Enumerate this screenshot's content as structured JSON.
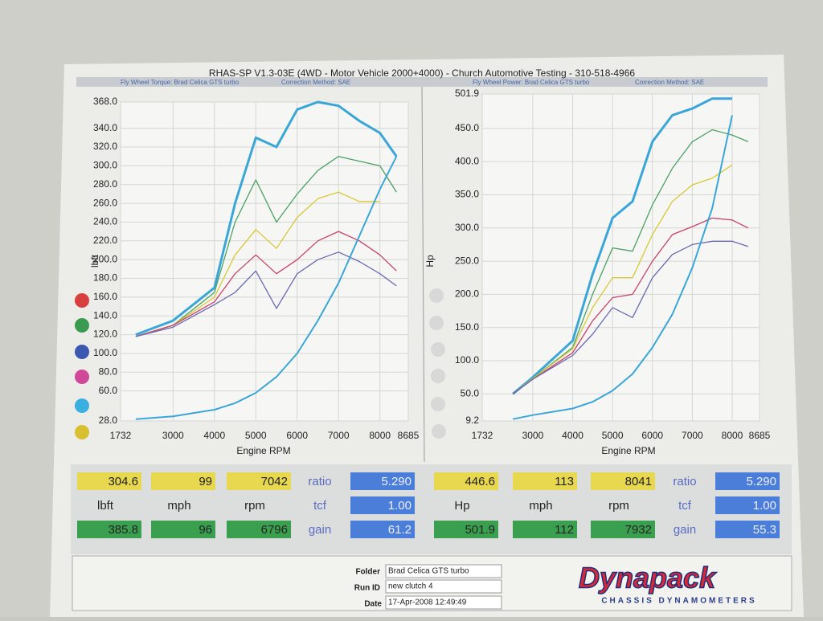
{
  "header": {
    "title": "RHAS-SP V1.3-03E  (4WD - Motor Vehicle 2000+4000) - Church Automotive Testing - 310-518-4966",
    "left_note": "Fly Wheel Torque: Brad Celica GTS turbo",
    "left_correction": "Correction Method: SAE",
    "right_note": "Fly Wheel Power: Brad Celica GTS turbo",
    "right_correction": "Correction Method: SAE"
  },
  "chart_data": [
    {
      "type": "line",
      "xlabel": "Engine RPM",
      "ylabel": "lbft",
      "grid": true,
      "x": [
        2100,
        3000,
        4000,
        4500,
        5000,
        5500,
        6000,
        6500,
        7000,
        7500,
        8000,
        8400
      ],
      "xlim": [
        1732,
        8685
      ],
      "xticks": [
        1732,
        3000,
        4000,
        5000,
        6000,
        7000,
        8000,
        8685
      ],
      "ylim": [
        28,
        368
      ],
      "yticks": [
        {
          "value": 28,
          "label": "28.0"
        },
        {
          "value": 60,
          "label": "60.0"
        },
        {
          "value": 80,
          "label": "80.0"
        },
        {
          "value": 100,
          "label": "100.0"
        },
        {
          "value": 120,
          "label": "120.0"
        },
        {
          "value": 140,
          "label": "140.0"
        },
        {
          "value": 160,
          "label": "160.0"
        },
        {
          "value": 180,
          "label": "180.0"
        },
        {
          "value": 200,
          "label": "200.0"
        },
        {
          "value": 220,
          "label": "220.0"
        },
        {
          "value": 240,
          "label": "240.0"
        },
        {
          "value": 260,
          "label": "260.0"
        },
        {
          "value": 280,
          "label": "280.0"
        },
        {
          "value": 300,
          "label": "300.0"
        },
        {
          "value": 320,
          "label": "320.0"
        },
        {
          "value": 340,
          "label": "340.0"
        },
        {
          "value": 368,
          "label": "368.0"
        }
      ],
      "series": [
        {
          "color": "#3aa6d8",
          "width": 3,
          "values": [
            120,
            135,
            170,
            260,
            330,
            320,
            360,
            368,
            364,
            348,
            335,
            310
          ]
        },
        {
          "color": "#4aa060",
          "width": 1.3,
          "values": [
            118,
            130,
            165,
            240,
            285,
            240,
            270,
            295,
            310,
            305,
            300,
            272
          ]
        },
        {
          "color": "#d8c832",
          "width": 1.3,
          "values": [
            118,
            130,
            160,
            205,
            232,
            212,
            245,
            265,
            272,
            262,
            262,
            null
          ]
        },
        {
          "color": "#c8406a",
          "width": 1.3,
          "values": [
            118,
            130,
            155,
            185,
            205,
            185,
            200,
            220,
            230,
            220,
            205,
            188
          ]
        },
        {
          "color": "#6a68b0",
          "width": 1.3,
          "values": [
            118,
            128,
            152,
            165,
            188,
            148,
            185,
            200,
            208,
            198,
            185,
            172
          ]
        },
        {
          "color": "#3aa6d8",
          "width": 2,
          "values": [
            30,
            33,
            40,
            47,
            58,
            75,
            100,
            135,
            175,
            225,
            275,
            310
          ]
        }
      ]
    },
    {
      "type": "line",
      "xlabel": "Engine RPM",
      "ylabel": "Hp",
      "grid": true,
      "x": [
        2500,
        3000,
        4000,
        4500,
        5000,
        5500,
        6000,
        6500,
        7000,
        7500,
        8000,
        8400
      ],
      "xlim": [
        1732,
        8685
      ],
      "xticks": [
        1732,
        3000,
        4000,
        5000,
        6000,
        7000,
        8000,
        8685
      ],
      "ylim": [
        9.2,
        501.9
      ],
      "yticks": [
        {
          "value": 9.2,
          "label": "9.2"
        },
        {
          "value": 50,
          "label": "50.0"
        },
        {
          "value": 100,
          "label": "100.0"
        },
        {
          "value": 150,
          "label": "150.0"
        },
        {
          "value": 200,
          "label": "200.0"
        },
        {
          "value": 250,
          "label": "250.0"
        },
        {
          "value": 300,
          "label": "300.0"
        },
        {
          "value": 350,
          "label": "350.0"
        },
        {
          "value": 400,
          "label": "400.0"
        },
        {
          "value": 450,
          "label": "450.0"
        },
        {
          "value": 501.9,
          "label": "501.9"
        }
      ],
      "series": [
        {
          "color": "#3aa6d8",
          "width": 3,
          "values": [
            50,
            75,
            130,
            230,
            315,
            340,
            430,
            470,
            480,
            495,
            495,
            null
          ]
        },
        {
          "color": "#4aa060",
          "width": 1.3,
          "values": [
            50,
            73,
            120,
            200,
            270,
            265,
            335,
            390,
            430,
            448,
            440,
            430
          ]
        },
        {
          "color": "#d8c832",
          "width": 1.3,
          "values": [
            50,
            73,
            118,
            180,
            225,
            225,
            290,
            340,
            365,
            375,
            395,
            null
          ]
        },
        {
          "color": "#c8406a",
          "width": 1.3,
          "values": [
            50,
            72,
            112,
            160,
            195,
            200,
            250,
            290,
            302,
            315,
            312,
            300
          ]
        },
        {
          "color": "#6a68b0",
          "width": 1.3,
          "values": [
            50,
            72,
            108,
            140,
            180,
            165,
            225,
            260,
            275,
            280,
            280,
            272
          ]
        },
        {
          "color": "#3aa6d8",
          "width": 2,
          "values": [
            12,
            18,
            28,
            38,
            55,
            80,
            120,
            170,
            240,
            330,
            470,
            null
          ]
        }
      ]
    }
  ],
  "tables": [
    {
      "rows": [
        [
          "304.6",
          "99",
          "7042",
          "ratio",
          "5.290"
        ],
        [
          "lbft",
          "mph",
          "rpm",
          "tcf",
          "1.00"
        ],
        [
          "385.8",
          "96",
          "6796",
          "gain",
          "61.2"
        ]
      ]
    },
    {
      "rows": [
        [
          "446.6",
          "113",
          "8041",
          "ratio",
          "5.290"
        ],
        [
          "Hp",
          "mph",
          "rpm",
          "tcf",
          "1.00"
        ],
        [
          "501.9",
          "112",
          "7932",
          "gain",
          "55.3"
        ]
      ]
    }
  ],
  "footer": {
    "folder_label": "Folder",
    "folder": "Brad Celica GTS turbo",
    "run_label": "Run ID",
    "run": "new clutch 4",
    "date_label": "Date",
    "date": "17-Apr-2008  12:49:49",
    "brand": "Dynapack",
    "tagline": "CHASSIS  DYNAMOMETERS"
  }
}
